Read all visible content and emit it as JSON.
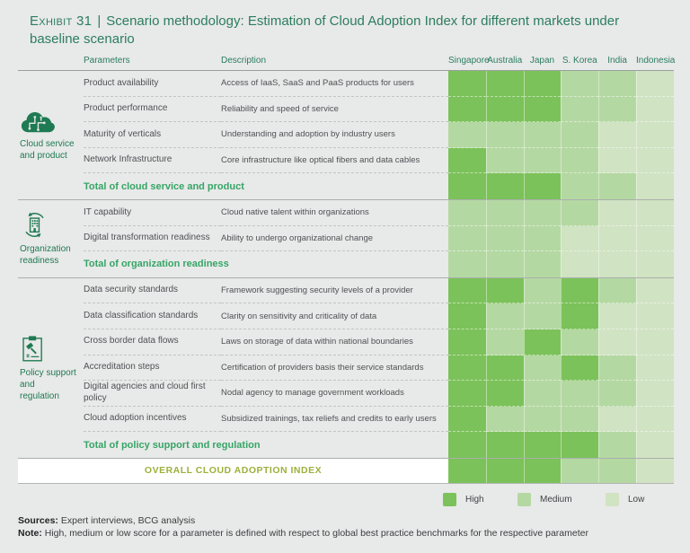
{
  "header": {
    "exhibit_label": "Exhibit 31",
    "separator": "|",
    "title": "Scenario methodology: Estimation of Cloud Adoption Index for different markets under baseline scenario"
  },
  "col_headers": {
    "parameters": "Parameters",
    "description": "Description"
  },
  "chart_data": {
    "type": "heatmap",
    "columns": [
      "Singapore",
      "Australia",
      "Japan",
      "S. Korea",
      "India",
      "Indonesia"
    ],
    "levels": {
      "high": "#7cc25a",
      "medium": "#b4d8a2",
      "low": "#d0e3c2"
    },
    "sections": [
      {
        "name": "Cloud service and product",
        "icon": "cloud-circuit-icon",
        "rows": [
          {
            "parameter": "Product availability",
            "description": "Access of IaaS, SaaS and PaaS products for users",
            "scores": [
              "high",
              "high",
              "high",
              "medium",
              "medium",
              "low"
            ]
          },
          {
            "parameter": "Product performance",
            "description": "Reliability and speed of service",
            "scores": [
              "high",
              "high",
              "high",
              "medium",
              "medium",
              "low"
            ]
          },
          {
            "parameter": "Maturity of verticals",
            "description": "Understanding and adoption by industry users",
            "scores": [
              "medium",
              "medium",
              "medium",
              "medium",
              "low",
              "low"
            ]
          },
          {
            "parameter": "Network Infrastructure",
            "description": "Core infrastructure like optical fibers and data cables",
            "scores": [
              "high",
              "medium",
              "medium",
              "medium",
              "low",
              "low"
            ]
          }
        ],
        "total": {
          "label": "Total of cloud service and product",
          "scores": [
            "high",
            "high",
            "high",
            "medium",
            "medium",
            "low"
          ]
        }
      },
      {
        "name": "Organization readiness",
        "icon": "building-refresh-icon",
        "rows": [
          {
            "parameter": "IT capability",
            "description": "Cloud native talent within organizations",
            "scores": [
              "medium",
              "medium",
              "medium",
              "medium",
              "low",
              "low"
            ]
          },
          {
            "parameter": "Digital transformation readiness",
            "description": "Ability to undergo organizational change",
            "scores": [
              "medium",
              "medium",
              "medium",
              "low",
              "low",
              "low"
            ]
          }
        ],
        "total": {
          "label": "Total of organization readiness",
          "scores": [
            "medium",
            "medium",
            "medium",
            "low",
            "low",
            "low"
          ]
        }
      },
      {
        "name": "Policy support and regulation",
        "icon": "policy-gavel-icon",
        "rows": [
          {
            "parameter": "Data security standards",
            "description": "Framework suggesting security levels of a provider",
            "scores": [
              "high",
              "high",
              "medium",
              "high",
              "medium",
              "low"
            ]
          },
          {
            "parameter": "Data classification standards",
            "description": "Clarity on sensitivity and criticality of data",
            "scores": [
              "high",
              "medium",
              "medium",
              "high",
              "low",
              "low"
            ]
          },
          {
            "parameter": "Cross border data flows",
            "description": "Laws on storage of data within national boundaries",
            "scores": [
              "high",
              "medium",
              "high",
              "medium",
              "low",
              "low"
            ]
          },
          {
            "parameter": "Accreditation steps",
            "description": "Certification of providers basis their service standards",
            "scores": [
              "high",
              "high",
              "medium",
              "high",
              "medium",
              "low"
            ]
          },
          {
            "parameter": "Digital agencies and cloud first policy",
            "description": "Nodal agency to manage government workloads",
            "scores": [
              "high",
              "high",
              "medium",
              "medium",
              "medium",
              "low"
            ]
          },
          {
            "parameter": "Cloud adoption incentives",
            "description": "Subsidized trainings, tax reliefs and credits to early users",
            "scores": [
              "high",
              "medium",
              "medium",
              "medium",
              "low",
              "low"
            ]
          }
        ],
        "total": {
          "label": "Total of policy support and regulation",
          "scores": [
            "high",
            "high",
            "high",
            "high",
            "medium",
            "low"
          ]
        }
      }
    ],
    "overall": {
      "label": "OVERALL CLOUD ADOPTION INDEX",
      "scores": [
        "high",
        "high",
        "high",
        "medium",
        "medium",
        "low"
      ]
    },
    "legend": [
      {
        "label": "High",
        "level": "high"
      },
      {
        "label": "Medium",
        "level": "medium"
      },
      {
        "label": "Low",
        "level": "low"
      }
    ]
  },
  "colors": {
    "title_green": "#2b7d5f",
    "section_green": "#1e7a52",
    "total_green": "#36a566",
    "overall_olive": "#9cb13b",
    "high": "#7cc25a",
    "medium": "#b4d8a2",
    "low": "#d0e3c2",
    "background": "#e8e9e9"
  },
  "footer": {
    "sources_label": "Sources:",
    "sources_text": " Expert interviews, BCG analysis",
    "note_label": "Note:",
    "note_text": " High, medium or low score for a parameter is defined with respect to global best practice benchmarks for the respective parameter"
  }
}
